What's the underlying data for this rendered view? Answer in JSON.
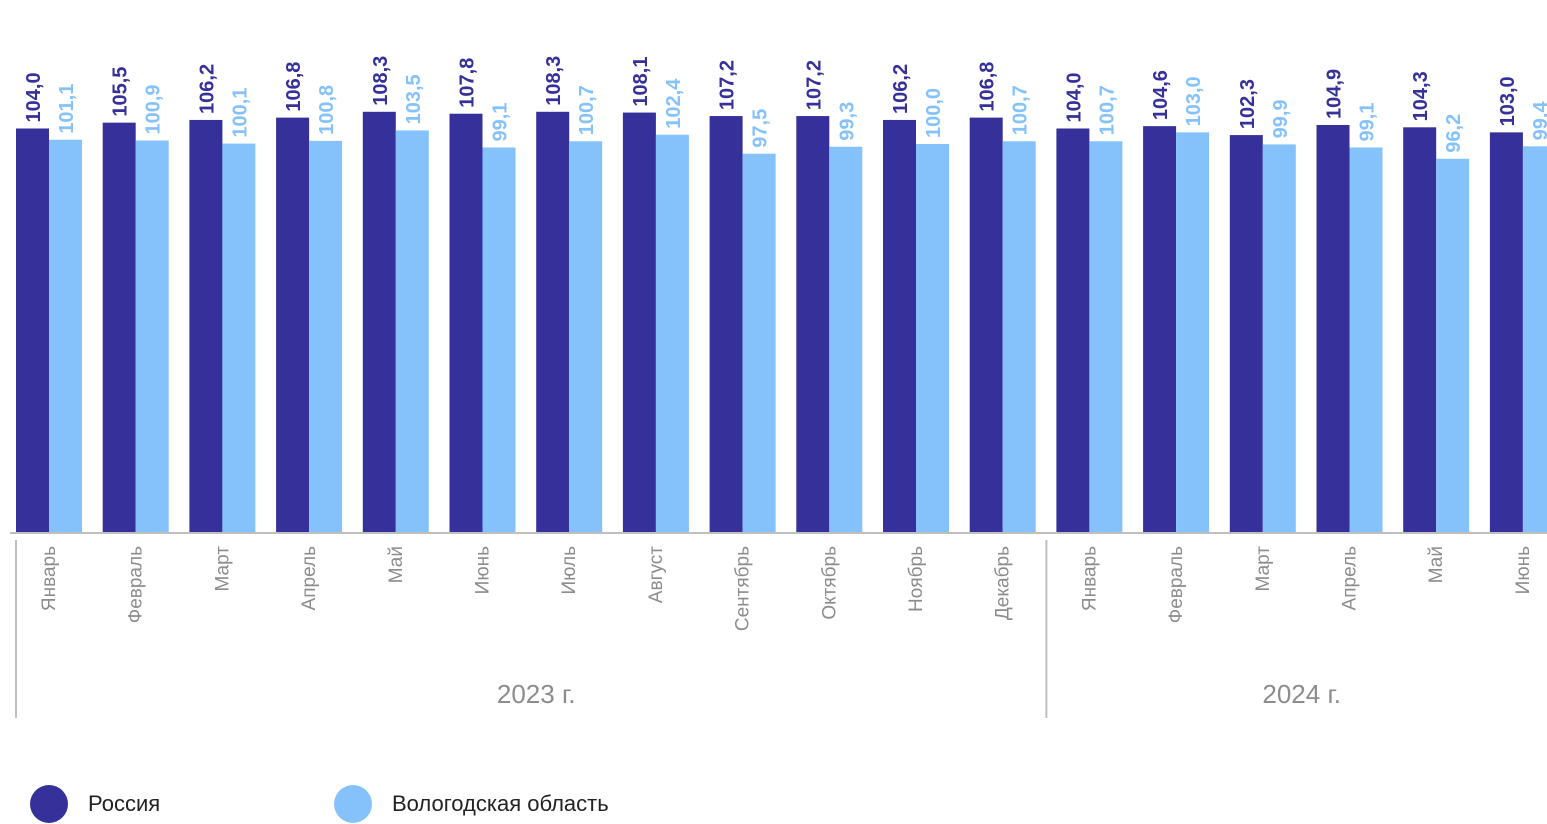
{
  "colors": {
    "russia": "#35309a",
    "vologda": "#85c2fc",
    "axis": "#bfbfbf"
  },
  "chart_data": {
    "type": "bar",
    "categories": [
      "Январь",
      "Февраль",
      "Март",
      "Апрель",
      "Май",
      "Июнь",
      "Июль",
      "Август",
      "Сентябрь",
      "Октябрь",
      "Ноябрь",
      "Декабрь",
      "Январь",
      "Февраль",
      "Март",
      "Апрель",
      "Май",
      "Июнь"
    ],
    "years": [
      {
        "label": "2023 г.",
        "months": 12
      },
      {
        "label": "2024 г.",
        "months": 6
      }
    ],
    "series": [
      {
        "name": "Россия",
        "values": [
          104.0,
          105.5,
          106.2,
          106.8,
          108.3,
          107.8,
          108.3,
          108.1,
          107.2,
          107.2,
          106.2,
          106.8,
          104.0,
          104.6,
          102.3,
          104.9,
          104.3,
          103.0
        ]
      },
      {
        "name": "Вологодская область",
        "values": [
          101.1,
          100.9,
          100.1,
          100.8,
          103.5,
          99.1,
          100.7,
          102.4,
          97.5,
          99.3,
          100.0,
          100.7,
          100.7,
          103.0,
          99.9,
          99.1,
          96.2,
          99.4
        ]
      }
    ],
    "legend_position": "bottom-left"
  },
  "legend": [
    {
      "label": "Россия",
      "color": "#35309a"
    },
    {
      "label": "Вологодская область",
      "color": "#85c2fc"
    }
  ]
}
